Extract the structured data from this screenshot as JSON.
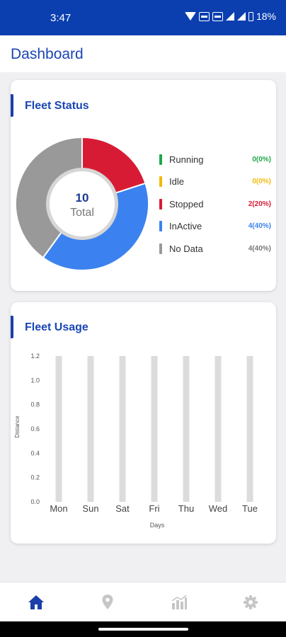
{
  "status_bar": {
    "time": "3:47",
    "battery": "18%"
  },
  "header": {
    "title": "Dashboard"
  },
  "fleet_status": {
    "title": "Fleet Status",
    "center_total": "10",
    "center_label": "Total",
    "items": [
      {
        "label": "Running",
        "value": "0(0%)",
        "color": "#1fa84a"
      },
      {
        "label": "Idle",
        "value": "0(0%)",
        "color": "#f2b90a"
      },
      {
        "label": "Stopped",
        "value": "2(20%)",
        "color": "#d81b34"
      },
      {
        "label": "InActive",
        "value": "4(40%)",
        "color": "#3b82f0"
      },
      {
        "label": "No Data",
        "value": "4(40%)",
        "color": "#999999"
      }
    ]
  },
  "fleet_usage": {
    "title": "Fleet Usage"
  },
  "chart_data": [
    {
      "type": "pie",
      "labels": [
        "Running",
        "Idle",
        "Stopped",
        "InActive",
        "No Data"
      ],
      "values": [
        0,
        0,
        2,
        4,
        4
      ],
      "colors": [
        "#1fa84a",
        "#f2b90a",
        "#d81b34",
        "#3b82f0",
        "#999999"
      ],
      "title": "Fleet Status"
    },
    {
      "type": "bar",
      "title": "Fleet Usage",
      "categories": [
        "Mon",
        "Sun",
        "Sat",
        "Fri",
        "Thu",
        "Wed",
        "Tue"
      ],
      "values": [
        1.2,
        1.2,
        1.2,
        1.2,
        1.2,
        1.2,
        1.2
      ],
      "yticks": [
        "0.0",
        "0.2",
        "0.4",
        "0.6",
        "0.8",
        "1.0",
        "1.2"
      ],
      "ylim": [
        0,
        1.2
      ],
      "xlabel": "Days",
      "ylabel": "Distance",
      "bar_color": "#dcdcdc",
      "grid": false
    }
  ],
  "nav": {
    "items": [
      {
        "icon": "home-icon",
        "color": "#1a3fa8"
      },
      {
        "icon": "location-pin-icon",
        "color": "#c6c6c6"
      },
      {
        "icon": "chart-icon",
        "color": "#c6c6c6"
      },
      {
        "icon": "settings-gear-icon",
        "color": "#c6c6c6"
      }
    ]
  }
}
